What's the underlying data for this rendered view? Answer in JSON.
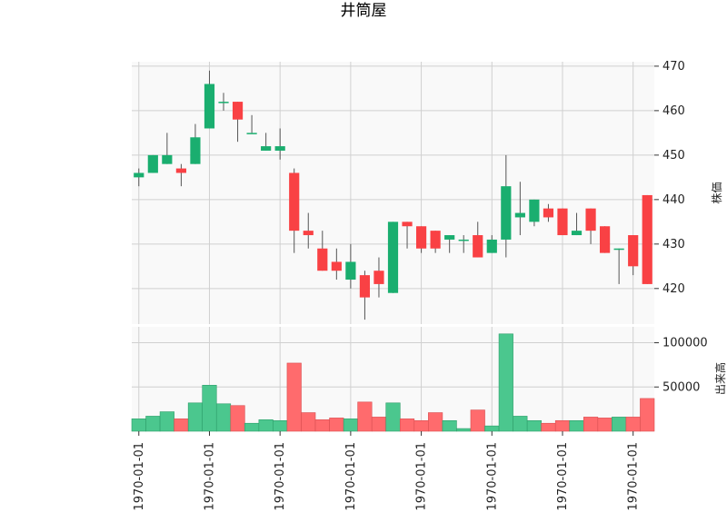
{
  "chart_data": {
    "type": "candlestick",
    "title": "井筒屋",
    "colors": {
      "up": "#1aae6f",
      "down": "#f94144",
      "up_volume": "#4bc78e",
      "down_volume": "#ff6b6d",
      "wick": "#555555",
      "panel_bg": "#f9f9f9",
      "grid": "#d0d0d0"
    },
    "x_tick_labels": [
      "1970-01-01",
      "1970-01-01",
      "1970-01-01",
      "1970-01-01",
      "1970-01-01",
      "1970-01-01",
      "1970-01-01",
      "1970-01-01"
    ],
    "x_tick_positions": [
      0,
      5,
      10,
      15,
      20,
      25,
      30,
      35
    ],
    "price_panel": {
      "ylabel": "株価",
      "ylim": [
        412,
        471
      ],
      "yticks": [
        420,
        430,
        440,
        450,
        460,
        470
      ],
      "grid": true
    },
    "volume_panel": {
      "ylabel": "出来高",
      "ylim": [
        0,
        118000
      ],
      "yticks": [
        50000,
        100000
      ],
      "grid": true
    },
    "candles": [
      {
        "open": 445,
        "high": 447,
        "low": 443,
        "close": 446,
        "volume": 14000
      },
      {
        "open": 446,
        "high": 450,
        "low": 446,
        "close": 450,
        "volume": 17000
      },
      {
        "open": 448,
        "high": 455,
        "low": 448,
        "close": 450,
        "volume": 22000
      },
      {
        "open": 447,
        "high": 448,
        "low": 443,
        "close": 446,
        "volume": 14000
      },
      {
        "open": 448,
        "high": 457,
        "low": 448,
        "close": 454,
        "volume": 32000
      },
      {
        "open": 456,
        "high": 469,
        "low": 456,
        "close": 466,
        "volume": 52000
      },
      {
        "open": 462,
        "high": 464,
        "low": 460,
        "close": 462,
        "volume": 31000
      },
      {
        "open": 462,
        "high": 462,
        "low": 453,
        "close": 458,
        "volume": 29000
      },
      {
        "open": 455,
        "high": 459,
        "low": 455,
        "close": 455,
        "volume": 9000
      },
      {
        "open": 451,
        "high": 455,
        "low": 451,
        "close": 452,
        "volume": 13000
      },
      {
        "open": 451,
        "high": 456,
        "low": 449,
        "close": 452,
        "volume": 12000
      },
      {
        "open": 446,
        "high": 447,
        "low": 428,
        "close": 433,
        "volume": 77000
      },
      {
        "open": 433,
        "high": 437,
        "low": 429,
        "close": 432,
        "volume": 21000
      },
      {
        "open": 429,
        "high": 433,
        "low": 424,
        "close": 424,
        "volume": 13000
      },
      {
        "open": 426,
        "high": 429,
        "low": 422,
        "close": 424,
        "volume": 15000
      },
      {
        "open": 422,
        "high": 430,
        "low": 420,
        "close": 426,
        "volume": 14000
      },
      {
        "open": 423,
        "high": 424,
        "low": 413,
        "close": 418,
        "volume": 33000
      },
      {
        "open": 424,
        "high": 427,
        "low": 418,
        "close": 421,
        "volume": 16000
      },
      {
        "open": 419,
        "high": 435,
        "low": 419,
        "close": 435,
        "volume": 32000
      },
      {
        "open": 435,
        "high": 435,
        "low": 429,
        "close": 434,
        "volume": 14000
      },
      {
        "open": 434,
        "high": 434,
        "low": 428,
        "close": 429,
        "volume": 12000
      },
      {
        "open": 433,
        "high": 433,
        "low": 428,
        "close": 429,
        "volume": 21000
      },
      {
        "open": 431,
        "high": 432,
        "low": 428,
        "close": 432,
        "volume": 12000
      },
      {
        "open": 431,
        "high": 432,
        "low": 428,
        "close": 431,
        "volume": 3000
      },
      {
        "open": 432,
        "high": 435,
        "low": 427,
        "close": 427,
        "volume": 24000
      },
      {
        "open": 428,
        "high": 432,
        "low": 428,
        "close": 431,
        "volume": 6000
      },
      {
        "open": 431,
        "high": 450,
        "low": 427,
        "close": 443,
        "volume": 110000
      },
      {
        "open": 436,
        "high": 444,
        "low": 432,
        "close": 437,
        "volume": 17000
      },
      {
        "open": 435,
        "high": 440,
        "low": 434,
        "close": 440,
        "volume": 12000
      },
      {
        "open": 438,
        "high": 439,
        "low": 435,
        "close": 436,
        "volume": 9000
      },
      {
        "open": 438,
        "high": 438,
        "low": 432,
        "close": 432,
        "volume": 12000
      },
      {
        "open": 432,
        "high": 437,
        "low": 432,
        "close": 433,
        "volume": 12000
      },
      {
        "open": 438,
        "high": 438,
        "low": 430,
        "close": 433,
        "volume": 16000
      },
      {
        "open": 434,
        "high": 434,
        "low": 428,
        "close": 428,
        "volume": 15000
      },
      {
        "open": 429,
        "high": 429,
        "low": 421,
        "close": 429,
        "volume": 16000
      },
      {
        "open": 432,
        "high": 432,
        "low": 423,
        "close": 425,
        "volume": 16000
      },
      {
        "open": 441,
        "high": 441,
        "low": 421,
        "close": 421,
        "volume": 37000
      }
    ]
  }
}
